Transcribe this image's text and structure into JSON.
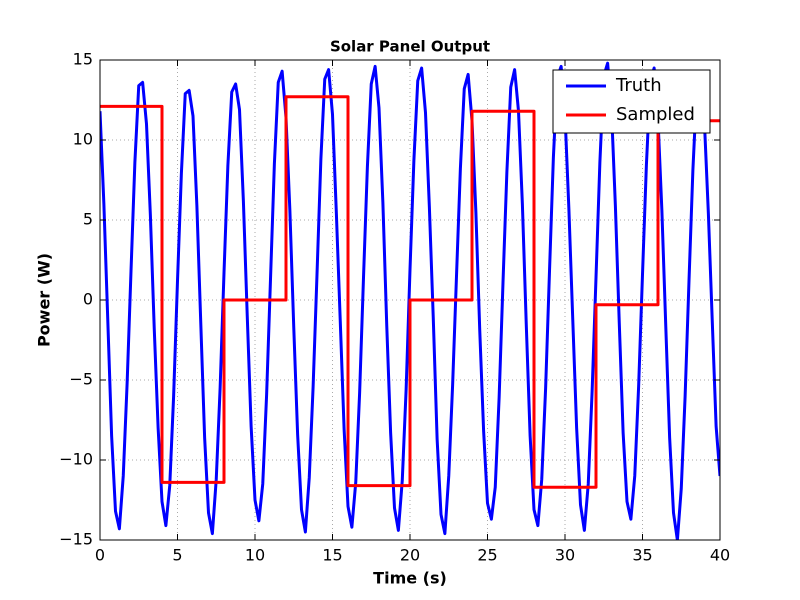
{
  "chart_data": {
    "type": "line",
    "title": "Solar Panel Output",
    "xlabel": "Time (s)",
    "ylabel": "Power (W)",
    "xlim": [
      0,
      40
    ],
    "ylim": [
      -15,
      15
    ],
    "xticks": [
      0,
      5,
      10,
      15,
      20,
      25,
      30,
      35,
      40
    ],
    "yticks": [
      {
        "value": -15,
        "label": "−15"
      },
      {
        "value": -10,
        "label": "−10"
      },
      {
        "value": -5,
        "label": "−5"
      },
      0,
      5,
      10,
      15
    ],
    "grid": true,
    "legend": "upper right",
    "series": [
      {
        "name": "Truth",
        "color": "#0000ff",
        "drawstyle": "default",
        "x": [
          0,
          0.25,
          0.5,
          0.75,
          1,
          1.25,
          1.5,
          1.75,
          2,
          2.25,
          2.5,
          2.75,
          3,
          3.25,
          3.5,
          3.75,
          4,
          4.25,
          4.5,
          4.75,
          5,
          5.25,
          5.5,
          5.75,
          6,
          6.25,
          6.5,
          6.75,
          7,
          7.25,
          7.5,
          7.75,
          8,
          8.25,
          8.5,
          8.75,
          9,
          9.25,
          9.5,
          9.75,
          10,
          10.25,
          10.5,
          10.75,
          11,
          11.25,
          11.5,
          11.75,
          12,
          12.25,
          12.5,
          12.75,
          13,
          13.25,
          13.5,
          13.75,
          14,
          14.25,
          14.5,
          14.75,
          15,
          15.25,
          15.5,
          15.75,
          16,
          16.25,
          16.5,
          16.75,
          17,
          17.25,
          17.5,
          17.75,
          18,
          18.25,
          18.5,
          18.75,
          19,
          19.25,
          19.5,
          19.75,
          20,
          20.25,
          20.5,
          20.75,
          21,
          21.25,
          21.5,
          21.75,
          22,
          22.25,
          22.5,
          22.75,
          23,
          23.25,
          23.5,
          23.75,
          24,
          24.25,
          24.5,
          24.75,
          25,
          25.25,
          25.5,
          25.75,
          26,
          26.25,
          26.5,
          26.75,
          27,
          27.25,
          27.5,
          27.75,
          28,
          28.25,
          28.5,
          28.75,
          29,
          29.25,
          29.5,
          29.75,
          30,
          30.25,
          30.5,
          30.75,
          31,
          31.25,
          31.5,
          31.75,
          32,
          32.25,
          32.5,
          32.75,
          33,
          33.25,
          33.5,
          33.75,
          34,
          34.25,
          34.5,
          34.75,
          35,
          35.25,
          35.5,
          35.75,
          36,
          36.25,
          36.5,
          36.75,
          37,
          37.25,
          37.5,
          37.75,
          38,
          38.25,
          38.5,
          38.75,
          39,
          39.25,
          39.5,
          39.75,
          40
        ],
        "values": [
          11.8,
          6.0,
          -1.2,
          -8.5,
          -13.2,
          -14.3,
          -11.0,
          -5.2,
          1.8,
          8.6,
          13.4,
          13.6,
          11.0,
          5.3,
          -1.8,
          -8.0,
          -12.6,
          -14.1,
          -11.6,
          -6.0,
          1.2,
          7.9,
          12.9,
          13.1,
          11.5,
          5.9,
          -1.4,
          -8.6,
          -13.3,
          -14.6,
          -11.2,
          -5.5,
          1.7,
          8.4,
          13.0,
          13.5,
          11.9,
          6.2,
          -1.0,
          -7.9,
          -12.5,
          -13.8,
          -11.5,
          -5.9,
          1.3,
          8.5,
          13.6,
          14.3,
          11.4,
          5.6,
          -1.7,
          -8.4,
          -13.1,
          -14.5,
          -11.1,
          -5.4,
          1.6,
          8.8,
          13.8,
          14.4,
          11.6,
          5.4,
          -1.3,
          -8.1,
          -12.9,
          -14.2,
          -11.4,
          -5.8,
          1.4,
          8.3,
          13.5,
          14.6,
          12.0,
          6.1,
          -1.6,
          -8.3,
          -13.0,
          -14.4,
          -11.3,
          -5.6,
          1.9,
          8.7,
          13.7,
          14.5,
          11.7,
          5.8,
          -1.1,
          -8.7,
          -13.4,
          -14.6,
          -11.0,
          -5.3,
          1.5,
          8.2,
          13.2,
          14.1,
          11.2,
          5.5,
          -1.9,
          -8.2,
          -12.7,
          -13.7,
          -11.7,
          -6.1,
          1.1,
          8.0,
          13.3,
          14.4,
          11.8,
          6.0,
          -1.5,
          -8.5,
          -13.1,
          -14.1,
          -11.2,
          -5.5,
          1.8,
          8.9,
          13.9,
          14.6,
          11.6,
          5.7,
          -1.2,
          -8.0,
          -12.8,
          -14.4,
          -11.5,
          -5.7,
          1.4,
          8.6,
          14.0,
          14.8,
          11.9,
          5.9,
          -1.4,
          -8.3,
          -12.6,
          -13.7,
          -11.0,
          -5.4,
          1.6,
          8.4,
          13.6,
          14.5,
          11.3,
          5.6,
          -1.6,
          -8.6,
          -13.3,
          -15.0,
          -11.8,
          -6.0,
          1.2,
          8.1,
          13.2,
          13.8,
          11.0,
          5.4,
          -1.3,
          -7.9,
          -11.0
        ]
      },
      {
        "name": "Sampled",
        "color": "#ff0000",
        "drawstyle": "steps-post",
        "x": [
          0,
          4,
          8,
          12,
          16,
          20,
          24,
          28,
          32,
          36,
          40
        ],
        "values": [
          12.1,
          -11.4,
          0,
          12.7,
          -11.6,
          0,
          11.8,
          -11.7,
          -0.3,
          11.2,
          11.2
        ]
      }
    ]
  }
}
